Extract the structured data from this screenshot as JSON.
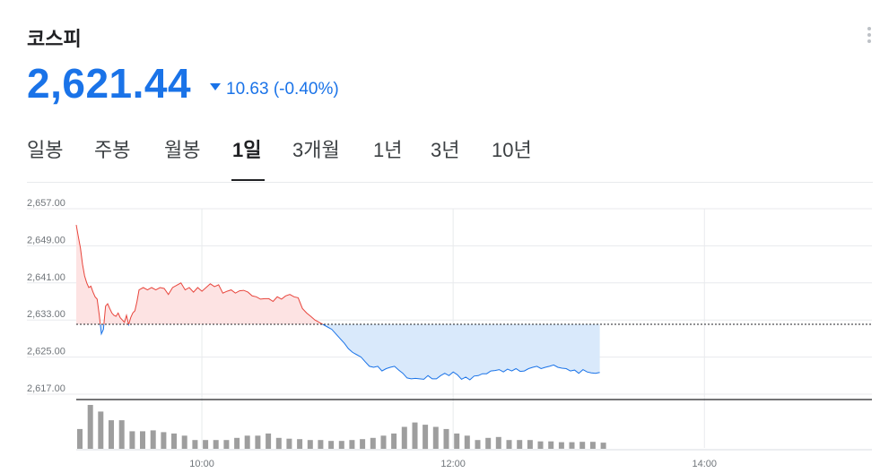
{
  "header": {
    "title": "코스피",
    "price": "2,621.44",
    "change": "10.63",
    "change_pct": "(-0.40%)",
    "direction": "down",
    "menu_icon": "more-vert-icon"
  },
  "tabs": [
    {
      "label": "일봉",
      "active": false
    },
    {
      "label": "주봉",
      "active": false
    },
    {
      "label": "월봉",
      "active": false
    },
    {
      "label": "1일",
      "active": true
    },
    {
      "label": "3개월",
      "active": false
    },
    {
      "label": "1년",
      "active": false
    },
    {
      "label": "3년",
      "active": false
    },
    {
      "label": "10년",
      "active": false
    }
  ],
  "colors": {
    "accent": "#1a73e8",
    "up_line": "#e8453c",
    "up_fill": "#fde3e3",
    "down_line": "#1a73e8",
    "down_fill": "#d9e9fb",
    "volume": "#9e9e9e"
  },
  "chart_data": {
    "type": "line",
    "y_tick_labels": [
      "2,657.00",
      "2,649.00",
      "2,641.00",
      "2,633.00",
      "2,625.00",
      "2,617.00"
    ],
    "y_ticks": [
      2657,
      2649,
      2641,
      2633,
      2625,
      2617
    ],
    "ylim": [
      2617,
      2657
    ],
    "x_tick_labels": [
      "10:00",
      "12:00",
      "14:00"
    ],
    "x_ticks": [
      60,
      180,
      300
    ],
    "xlim": [
      0,
      380
    ],
    "x_unit": "minutes since 09:00",
    "baseline": 2632.07,
    "grid": true,
    "series": [
      {
        "x": [
          0,
          1,
          2,
          3,
          4,
          5,
          6,
          7,
          8,
          9,
          10,
          11,
          12,
          13,
          14,
          15,
          16,
          17,
          18,
          19,
          20,
          21,
          22,
          23,
          24,
          25,
          26,
          27,
          28,
          29,
          30,
          32,
          34,
          36,
          38,
          40,
          42,
          44,
          46,
          48,
          50,
          52,
          54,
          56,
          58,
          60,
          62,
          64,
          66,
          68,
          70,
          72,
          74,
          76,
          78,
          80,
          82,
          84,
          86,
          88,
          90,
          92,
          94,
          96,
          98,
          100,
          102,
          104,
          106,
          108,
          110,
          112,
          114,
          116,
          118,
          120,
          122,
          124,
          126,
          128,
          130,
          132,
          134,
          136,
          138,
          140,
          142,
          144,
          146,
          148,
          150,
          152,
          154,
          156,
          158,
          160,
          162,
          164,
          166,
          168,
          170,
          172,
          174,
          176,
          178,
          180,
          182,
          184,
          186,
          188,
          190,
          192,
          194,
          196,
          198,
          200,
          202,
          204,
          206,
          208,
          210,
          212,
          214,
          216,
          218,
          220,
          222,
          224,
          226,
          228,
          230,
          232,
          234,
          236,
          238,
          240,
          242,
          244,
          246,
          248,
          250
        ],
        "values": [
          2653.5,
          2651.0,
          2648.5,
          2645.0,
          2642.5,
          2641.0,
          2640.0,
          2640.3,
          2639.0,
          2638.0,
          2637.5,
          2634.0,
          2630.0,
          2631.0,
          2636.0,
          2636.5,
          2635.5,
          2634.5,
          2634.0,
          2633.8,
          2634.5,
          2633.5,
          2633.0,
          2632.5,
          2634.0,
          2632.0,
          2633.5,
          2634.5,
          2635.0,
          2637.0,
          2639.5,
          2640.0,
          2639.5,
          2640.0,
          2639.5,
          2640.0,
          2639.8,
          2638.5,
          2640.0,
          2640.5,
          2641.0,
          2639.5,
          2640.0,
          2639.0,
          2640.0,
          2639.2,
          2640.0,
          2640.8,
          2640.2,
          2640.6,
          2638.8,
          2639.2,
          2639.5,
          2638.8,
          2639.3,
          2639.4,
          2639.0,
          2638.2,
          2638.0,
          2637.5,
          2637.6,
          2637.6,
          2637.0,
          2638.0,
          2637.5,
          2638.2,
          2638.5,
          2638.0,
          2637.8,
          2635.5,
          2634.5,
          2633.8,
          2633.0,
          2632.5,
          2632.0,
          2631.5,
          2631.0,
          2630.0,
          2629.0,
          2628.0,
          2626.8,
          2626.0,
          2625.5,
          2625.0,
          2624.0,
          2623.0,
          2622.8,
          2623.0,
          2622.0,
          2622.5,
          2622.8,
          2623.0,
          2622.2,
          2621.5,
          2620.5,
          2620.3,
          2620.4,
          2620.3,
          2620.2,
          2621.0,
          2620.3,
          2620.3,
          2621.0,
          2621.5,
          2621.0,
          2621.8,
          2621.2,
          2620.2,
          2620.7,
          2620.1,
          2620.9,
          2621.0,
          2621.4,
          2621.4,
          2622.0,
          2622.1,
          2622.3,
          2621.8,
          2622.4,
          2622.0,
          2622.5,
          2621.9,
          2622.0,
          2622.5,
          2622.8,
          2623.0,
          2622.5,
          2622.8,
          2623.0,
          2623.3,
          2622.8,
          2622.6,
          2622.5,
          2622.0,
          2622.2,
          2621.5,
          2622.3,
          2621.8,
          2621.6,
          2621.5,
          2621.7
        ]
      }
    ],
    "volume": {
      "x": [
        0,
        5,
        10,
        15,
        20,
        25,
        30,
        35,
        40,
        45,
        50,
        55,
        60,
        65,
        70,
        75,
        80,
        85,
        90,
        95,
        100,
        105,
        110,
        115,
        120,
        125,
        130,
        135,
        140,
        145,
        150,
        155,
        160,
        165,
        170,
        175,
        180,
        185,
        190,
        195,
        200,
        205,
        210,
        215,
        220,
        225,
        230,
        235,
        240,
        245,
        250
      ],
      "values": [
        4.5,
        10,
        8.5,
        6.5,
        6.5,
        4,
        4,
        4.2,
        3.8,
        3.5,
        3,
        2,
        2,
        2,
        2,
        2.5,
        3,
        3,
        3.5,
        2.5,
        2.3,
        2.2,
        2,
        2,
        1.8,
        1.8,
        2,
        2.2,
        2.5,
        3,
        3.5,
        5,
        6,
        5.5,
        5,
        4.5,
        3.5,
        3,
        2,
        2.5,
        2.7,
        2,
        2,
        2,
        1.7,
        1.7,
        1.5,
        1.5,
        1.6,
        1.6,
        1.4
      ]
    }
  }
}
